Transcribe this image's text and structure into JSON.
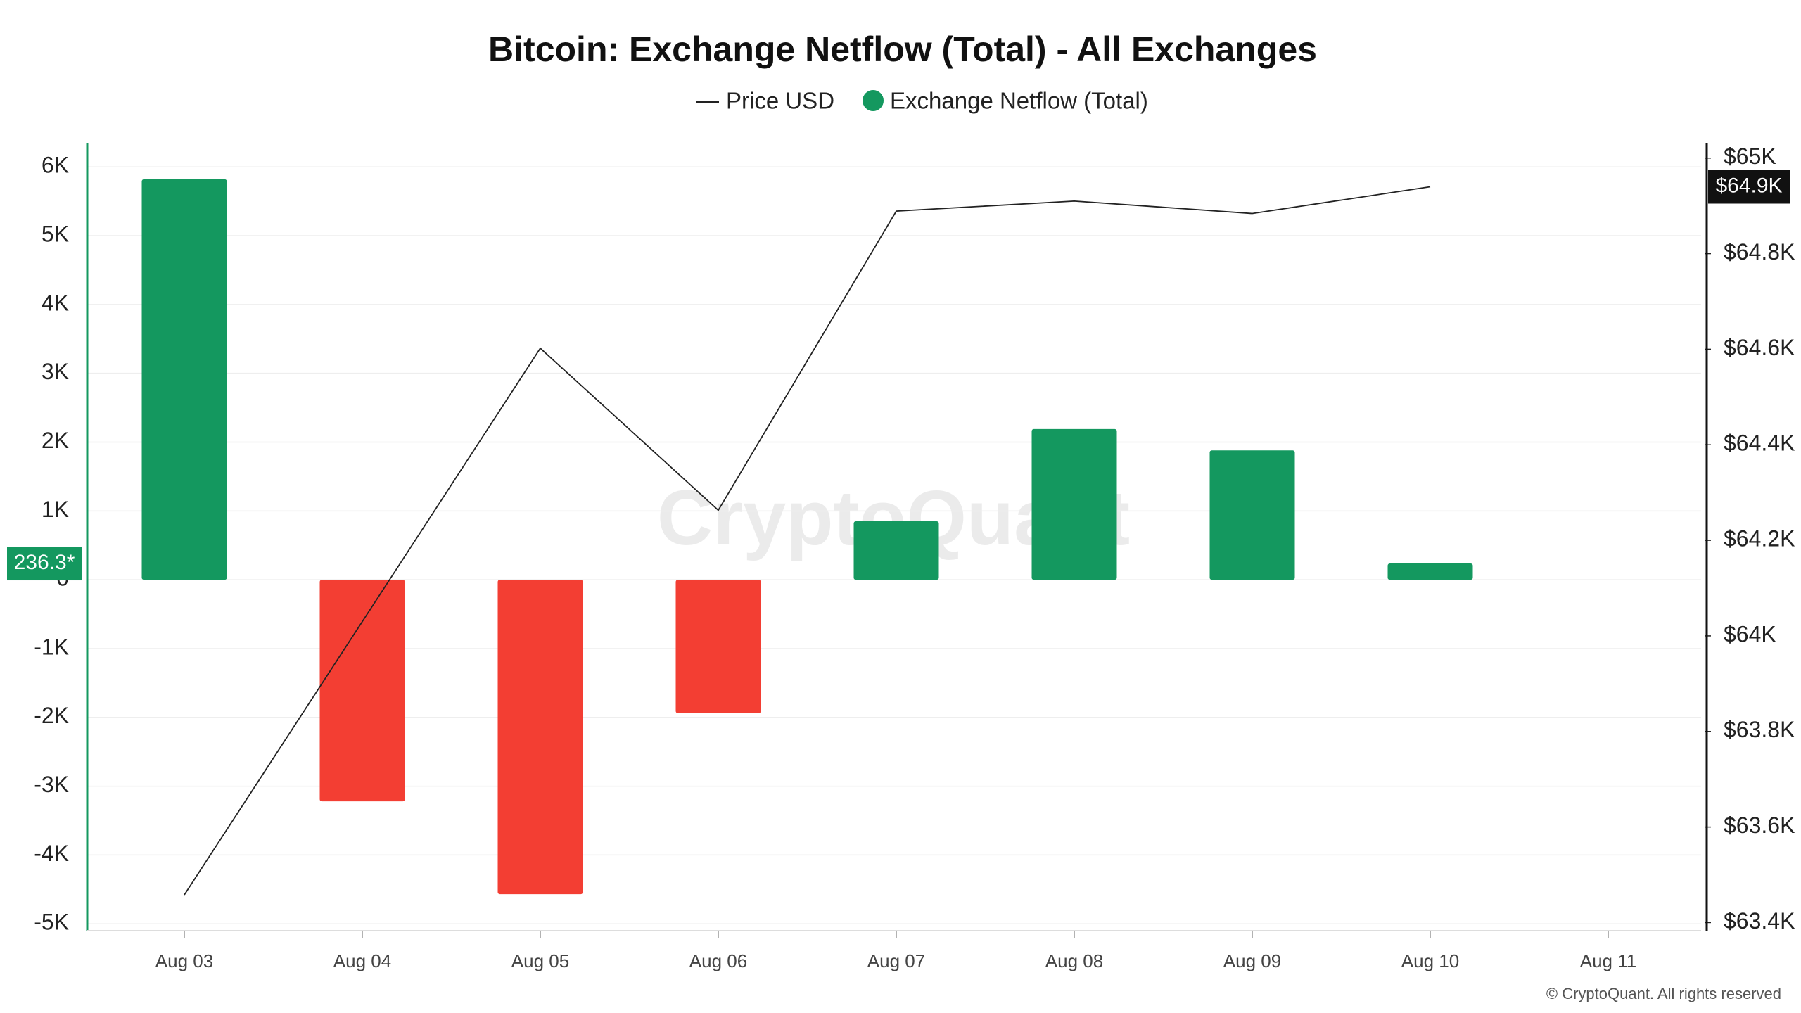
{
  "chart_data": {
    "type": "bar",
    "title": "Bitcoin: Exchange Netflow (Total) - All Exchanges",
    "categories": [
      "Aug 03",
      "Aug 04",
      "Aug 05",
      "Aug 06",
      "Aug 07",
      "Aug 08",
      "Aug 09",
      "Aug 10",
      "Aug 11"
    ],
    "series": [
      {
        "name": "Price USD",
        "type": "line",
        "axis": "y2",
        "color": "#222222",
        "values": [
          63458,
          64030,
          64602,
          64263,
          64889,
          64910,
          64884,
          64940,
          null
        ],
        "value_labels": [
          null,
          null,
          null,
          null,
          null,
          null,
          null,
          "$64.9K",
          null
        ]
      },
      {
        "name": "Exchange Netflow (Total)",
        "type": "bar",
        "color": "#14985f",
        "negative_color": "#f33e33",
        "values": [
          5820,
          -3220,
          -4570,
          -1940,
          850,
          2190,
          1880,
          236.3,
          null
        ],
        "value_labels": [
          null,
          null,
          null,
          null,
          null,
          null,
          null,
          "236.3*",
          null
        ]
      }
    ],
    "ylim": [
      -5100,
      6350
    ],
    "yticks": [
      {
        "value": 6000,
        "label": "6K"
      },
      {
        "value": 5000,
        "label": "5K"
      },
      {
        "value": 4000,
        "label": "4K"
      },
      {
        "value": 3000,
        "label": "3K"
      },
      {
        "value": 2000,
        "label": "2K"
      },
      {
        "value": 1000,
        "label": "1K"
      },
      0,
      {
        "value": -1000,
        "label": "-1K"
      },
      {
        "value": -2000,
        "label": "-2K"
      },
      {
        "value": -3000,
        "label": "-3K"
      },
      {
        "value": -4000,
        "label": "-4K"
      },
      {
        "value": -5000,
        "label": "-5K"
      }
    ],
    "y2lim": [
      63383,
      65032
    ],
    "y2ticks": [
      {
        "value": 65000,
        "label": "$65K"
      },
      {
        "value": 64800,
        "label": "$64.8K"
      },
      {
        "value": 64600,
        "label": "$64.6K"
      },
      {
        "value": 64400,
        "label": "$64.4K"
      },
      {
        "value": 64200,
        "label": "$64.2K"
      },
      {
        "value": 64000,
        "label": "$64K"
      },
      {
        "value": 63800,
        "label": "$63.8K"
      },
      {
        "value": 63600,
        "label": "$63.6K"
      },
      {
        "value": 63400,
        "label": "$63.4K"
      }
    ],
    "grid": true,
    "watermark": "CryptoQuant",
    "credit": "© CryptoQuant. All rights reserved"
  }
}
